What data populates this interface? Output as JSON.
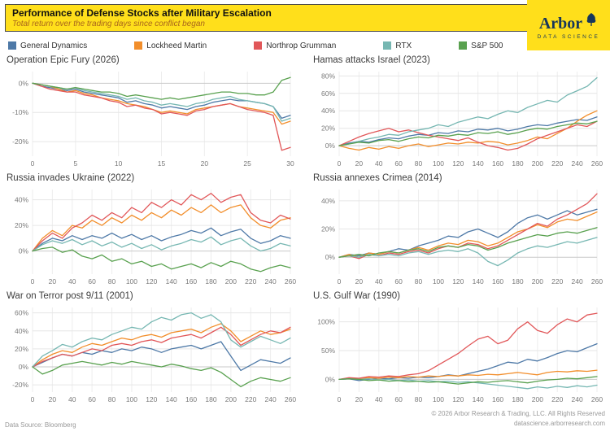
{
  "header": {
    "title": "Performance of Defense Stocks after Military Escalation",
    "subtitle": "Total return over the trading days since conflict began"
  },
  "logo": {
    "name": "Arbor",
    "tagline": "DATA SCIENCE"
  },
  "theme": {
    "banner_yellow": "#ffdf1b",
    "subtitle_orange": "#a8641c",
    "logo_navy": "#16365c"
  },
  "legend": {
    "items": [
      {
        "label": "General Dynamics",
        "color": "#4e79a7"
      },
      {
        "label": "Lockheed Martin",
        "color": "#f28e2b"
      },
      {
        "label": "Northrop Grumman",
        "color": "#e15759"
      },
      {
        "label": "RTX",
        "color": "#76b7b2"
      },
      {
        "label": "S&P 500",
        "color": "#59a14f"
      }
    ]
  },
  "chart_data": [
    {
      "type": "line",
      "title": "Operation Epic Fury (2026)",
      "xlabel": "",
      "ylabel": "",
      "xlim": [
        0,
        30
      ],
      "xticks": [
        0,
        5,
        10,
        15,
        20,
        25,
        30
      ],
      "ylim": [
        -25,
        4
      ],
      "yticks": [
        0,
        -10,
        -20
      ],
      "series": [
        {
          "name": "General Dynamics",
          "values": [
            0,
            -1,
            -1.5,
            -2,
            -2.5,
            -2,
            -3,
            -3.5,
            -4,
            -4.5,
            -5,
            -6.5,
            -6,
            -7,
            -7.5,
            -8.5,
            -8,
            -8.5,
            -9,
            -8,
            -7.5,
            -6.5,
            -6,
            -5.5,
            -6,
            -6,
            -6.5,
            -7,
            -8,
            -12,
            -11
          ]
        },
        {
          "name": "Lockheed Martin",
          "values": [
            0,
            -0.5,
            -1,
            -2,
            -3,
            -2.5,
            -3.5,
            -4,
            -5,
            -5.5,
            -6,
            -7,
            -7.5,
            -8,
            -9,
            -10,
            -9.5,
            -10,
            -10.5,
            -9,
            -8.5,
            -8,
            -7.5,
            -7,
            -8,
            -8.5,
            -9,
            -9.5,
            -10,
            -14,
            -13
          ]
        },
        {
          "name": "Northrop Grumman",
          "values": [
            0,
            -1,
            -2,
            -2.5,
            -3,
            -3,
            -4,
            -4.5,
            -5,
            -6,
            -6.5,
            -8,
            -7.5,
            -8.5,
            -9,
            -10.5,
            -10,
            -10.5,
            -11,
            -9.5,
            -9,
            -8,
            -7.5,
            -7,
            -8,
            -9,
            -9.5,
            -10,
            -11,
            -23,
            -22
          ]
        },
        {
          "name": "RTX",
          "values": [
            0,
            -0.5,
            -1,
            -1.5,
            -2,
            -1.5,
            -2.5,
            -3,
            -3.5,
            -4,
            -4.5,
            -5.5,
            -5,
            -6,
            -6.5,
            -7.5,
            -7,
            -7.5,
            -8,
            -7,
            -6.5,
            -5.5,
            -5,
            -4.5,
            -5.5,
            -6,
            -6.5,
            -7,
            -8,
            -13,
            -12
          ]
        },
        {
          "name": "S&P 500",
          "values": [
            0,
            -0.5,
            -1,
            -1.5,
            -2,
            -1.5,
            -2,
            -2.5,
            -3,
            -3,
            -3.5,
            -4.5,
            -4,
            -4.5,
            -5,
            -5.5,
            -5,
            -5.5,
            -5,
            -4.5,
            -4,
            -3.5,
            -3,
            -3,
            -3.5,
            -3.5,
            -4,
            -4,
            -3,
            1,
            2
          ]
        }
      ]
    },
    {
      "type": "line",
      "title": "Hamas attacks Israel (2023)",
      "xlabel": "",
      "ylabel": "",
      "xlim": [
        0,
        260
      ],
      "xticks": [
        0,
        20,
        40,
        60,
        80,
        100,
        120,
        140,
        160,
        180,
        200,
        220,
        240,
        260
      ],
      "ylim": [
        -12,
        85
      ],
      "yticks": [
        0,
        20,
        40,
        60,
        80
      ],
      "series": [
        {
          "name": "General Dynamics",
          "values": [
            0,
            3,
            5,
            4,
            7,
            9,
            8,
            11,
            13,
            12,
            15,
            14,
            17,
            16,
            19,
            18,
            20,
            17,
            19,
            22,
            24,
            23,
            26,
            28,
            30,
            29,
            33
          ]
        },
        {
          "name": "Lockheed Martin",
          "values": [
            0,
            -3,
            -5,
            -2,
            -4,
            -1,
            -3,
            0,
            2,
            -1,
            1,
            3,
            2,
            4,
            3,
            5,
            4,
            1,
            3,
            6,
            10,
            8,
            14,
            20,
            28,
            35,
            40
          ]
        },
        {
          "name": "Northrop Grumman",
          "values": [
            0,
            5,
            10,
            14,
            17,
            20,
            16,
            18,
            15,
            12,
            10,
            8,
            6,
            9,
            4,
            0,
            -2,
            -5,
            -3,
            2,
            8,
            12,
            16,
            20,
            24,
            22,
            28
          ]
        },
        {
          "name": "RTX",
          "values": [
            0,
            2,
            5,
            8,
            10,
            13,
            12,
            16,
            18,
            20,
            24,
            22,
            27,
            30,
            33,
            31,
            36,
            40,
            38,
            44,
            48,
            52,
            50,
            58,
            63,
            68,
            78
          ]
        },
        {
          "name": "S&P 500",
          "values": [
            0,
            2,
            4,
            3,
            6,
            7,
            5,
            8,
            10,
            9,
            12,
            11,
            13,
            12,
            15,
            14,
            16,
            13,
            15,
            18,
            20,
            19,
            22,
            24,
            26,
            25,
            28
          ]
        }
      ]
    },
    {
      "type": "line",
      "title": "Russia invades Ukraine (2022)",
      "xlabel": "",
      "ylabel": "",
      "xlim": [
        0,
        260
      ],
      "xticks": [
        0,
        20,
        40,
        60,
        80,
        100,
        120,
        140,
        160,
        180,
        200,
        220,
        240,
        260
      ],
      "ylim": [
        -18,
        48
      ],
      "yticks": [
        0,
        20,
        40
      ],
      "series": [
        {
          "name": "General Dynamics",
          "values": [
            0,
            6,
            10,
            8,
            12,
            9,
            12,
            10,
            14,
            10,
            13,
            9,
            12,
            8,
            11,
            13,
            16,
            14,
            18,
            12,
            15,
            17,
            10,
            6,
            8,
            12,
            10
          ]
        },
        {
          "name": "Lockheed Martin",
          "values": [
            0,
            10,
            16,
            12,
            20,
            18,
            24,
            20,
            26,
            22,
            28,
            24,
            30,
            26,
            32,
            28,
            34,
            30,
            36,
            30,
            34,
            36,
            26,
            20,
            18,
            24,
            26
          ]
        },
        {
          "name": "Northrop Grumman",
          "values": [
            0,
            8,
            14,
            10,
            18,
            22,
            28,
            24,
            30,
            26,
            34,
            30,
            38,
            34,
            40,
            36,
            44,
            40,
            45,
            38,
            42,
            44,
            30,
            24,
            22,
            28,
            25
          ]
        },
        {
          "name": "RTX",
          "values": [
            0,
            5,
            8,
            6,
            9,
            5,
            8,
            4,
            7,
            3,
            6,
            2,
            5,
            1,
            4,
            6,
            9,
            7,
            11,
            5,
            8,
            10,
            4,
            0,
            2,
            6,
            4
          ]
        },
        {
          "name": "S&P 500",
          "values": [
            0,
            2,
            3,
            -1,
            1,
            -4,
            -6,
            -3,
            -8,
            -6,
            -10,
            -8,
            -12,
            -10,
            -14,
            -12,
            -10,
            -13,
            -9,
            -12,
            -8,
            -10,
            -14,
            -16,
            -13,
            -11,
            -13
          ]
        }
      ]
    },
    {
      "type": "line",
      "title": "Russia annexes Crimea (2014)",
      "xlabel": "",
      "ylabel": "",
      "xlim": [
        0,
        260
      ],
      "xticks": [
        0,
        20,
        40,
        60,
        80,
        100,
        120,
        140,
        160,
        180,
        200,
        220,
        240,
        260
      ],
      "ylim": [
        -12,
        48
      ],
      "yticks": [
        0,
        20,
        40
      ],
      "series": [
        {
          "name": "General Dynamics",
          "values": [
            0,
            2,
            1,
            3,
            2,
            4,
            6,
            5,
            8,
            10,
            12,
            15,
            14,
            18,
            20,
            17,
            14,
            18,
            24,
            28,
            30,
            27,
            30,
            33,
            30,
            32,
            34
          ]
        },
        {
          "name": "Lockheed Martin",
          "values": [
            0,
            2,
            0,
            3,
            2,
            4,
            3,
            5,
            7,
            5,
            8,
            10,
            9,
            12,
            11,
            8,
            10,
            14,
            18,
            20,
            23,
            21,
            25,
            27,
            26,
            29,
            32
          ]
        },
        {
          "name": "Northrop Grumman",
          "values": [
            0,
            1,
            -1,
            2,
            1,
            3,
            2,
            4,
            5,
            3,
            6,
            8,
            7,
            10,
            9,
            6,
            8,
            12,
            16,
            20,
            24,
            22,
            27,
            30,
            34,
            38,
            45
          ]
        },
        {
          "name": "RTX",
          "values": [
            0,
            1,
            0,
            2,
            1,
            2,
            1,
            3,
            4,
            2,
            4,
            5,
            4,
            6,
            3,
            -3,
            -6,
            -2,
            3,
            6,
            8,
            7,
            9,
            11,
            10,
            12,
            14
          ]
        },
        {
          "name": "S&P 500",
          "values": [
            0,
            1,
            2,
            1,
            3,
            4,
            3,
            5,
            6,
            4,
            7,
            8,
            7,
            9,
            8,
            5,
            7,
            10,
            12,
            14,
            16,
            15,
            17,
            18,
            17,
            19,
            21
          ]
        }
      ]
    },
    {
      "type": "line",
      "title": "War on Terror post 9/11 (2001)",
      "xlabel": "",
      "ylabel": "",
      "xlim": [
        0,
        260
      ],
      "xticks": [
        0,
        20,
        40,
        60,
        80,
        100,
        120,
        140,
        160,
        180,
        200,
        220,
        240,
        260
      ],
      "ylim": [
        -28,
        66
      ],
      "yticks": [
        -20,
        0,
        20,
        40,
        60
      ],
      "series": [
        {
          "name": "General Dynamics",
          "values": [
            0,
            5,
            10,
            14,
            12,
            16,
            14,
            18,
            16,
            20,
            18,
            22,
            20,
            16,
            20,
            22,
            24,
            20,
            24,
            28,
            12,
            -4,
            2,
            8,
            6,
            4,
            10
          ]
        },
        {
          "name": "Lockheed Martin",
          "values": [
            0,
            8,
            14,
            18,
            16,
            22,
            26,
            24,
            28,
            32,
            30,
            34,
            36,
            33,
            38,
            40,
            42,
            38,
            44,
            48,
            40,
            28,
            34,
            40,
            36,
            38,
            42
          ]
        },
        {
          "name": "Northrop Grumman",
          "values": [
            0,
            6,
            10,
            14,
            12,
            16,
            20,
            18,
            24,
            26,
            24,
            28,
            30,
            27,
            32,
            34,
            36,
            32,
            38,
            44,
            36,
            24,
            30,
            36,
            40,
            38,
            44
          ]
        },
        {
          "name": "RTX",
          "values": [
            0,
            12,
            18,
            25,
            22,
            28,
            32,
            30,
            36,
            40,
            44,
            42,
            50,
            55,
            52,
            58,
            60,
            54,
            58,
            50,
            30,
            22,
            28,
            34,
            30,
            26,
            32
          ]
        },
        {
          "name": "S&P 500",
          "values": [
            0,
            -8,
            -4,
            2,
            4,
            6,
            4,
            2,
            5,
            3,
            6,
            4,
            2,
            0,
            3,
            1,
            -2,
            -4,
            -1,
            -6,
            -14,
            -22,
            -16,
            -12,
            -14,
            -16,
            -12
          ]
        }
      ]
    },
    {
      "type": "line",
      "title": "U.S. Gulf War (1990)",
      "xlabel": "",
      "ylabel": "",
      "xlim": [
        0,
        260
      ],
      "xticks": [
        0,
        20,
        40,
        60,
        80,
        100,
        120,
        140,
        160,
        180,
        200,
        220,
        240,
        260
      ],
      "ylim": [
        -22,
        125
      ],
      "yticks": [
        0,
        50,
        100
      ],
      "series": [
        {
          "name": "General Dynamics",
          "values": [
            0,
            1,
            -2,
            0,
            2,
            1,
            3,
            2,
            4,
            3,
            5,
            8,
            6,
            10,
            14,
            18,
            24,
            30,
            28,
            35,
            32,
            38,
            45,
            50,
            48,
            55,
            62
          ]
        },
        {
          "name": "Lockheed Martin",
          "values": [
            0,
            2,
            1,
            3,
            2,
            4,
            3,
            5,
            4,
            6,
            5,
            7,
            6,
            8,
            7,
            9,
            8,
            10,
            12,
            10,
            8,
            12,
            14,
            13,
            15,
            14,
            16
          ]
        },
        {
          "name": "Northrop Grumman",
          "values": [
            0,
            3,
            2,
            5,
            4,
            6,
            5,
            8,
            10,
            15,
            25,
            35,
            45,
            58,
            70,
            75,
            62,
            68,
            88,
            100,
            85,
            80,
            95,
            105,
            100,
            112,
            115
          ]
        },
        {
          "name": "RTX",
          "values": [
            0,
            1,
            0,
            1,
            -1,
            0,
            -2,
            -1,
            -3,
            -2,
            -4,
            -3,
            -5,
            -4,
            -6,
            -8,
            -10,
            -12,
            -14,
            -16,
            -13,
            -15,
            -12,
            -14,
            -11,
            -13,
            -10
          ]
        },
        {
          "name": "S&P 500",
          "values": [
            0,
            1,
            0,
            -2,
            -1,
            -3,
            -2,
            -4,
            -3,
            -5,
            -4,
            -6,
            -8,
            -6,
            -4,
            -5,
            -3,
            -2,
            -4,
            -6,
            -3,
            -1,
            0,
            2,
            1,
            3,
            5
          ]
        }
      ]
    }
  ],
  "footer": {
    "source": "Data Source: Bloomberg",
    "copyright": "© 2026 Arbor Research & Trading, LLC. All Rights Reserved",
    "site": "datascience.arborresearch.com"
  }
}
